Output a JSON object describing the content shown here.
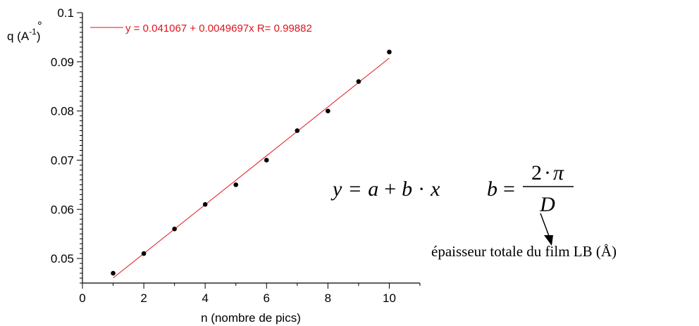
{
  "chart_data": {
    "type": "scatter",
    "xlabel": "n (nombre de pics)",
    "ylabel": {
      "base": "q (A",
      "accent": "°",
      "exp": "-1",
      "close": ")"
    },
    "xlim": [
      0,
      11
    ],
    "ylim": [
      0.045,
      0.1
    ],
    "x_ticks": [
      0,
      2,
      4,
      6,
      8,
      10
    ],
    "y_ticks": [
      0.05,
      0.06,
      0.07,
      0.08,
      0.09,
      0.1
    ],
    "y_tick_labels": [
      "0.05",
      "0.06",
      "0.07",
      "0.08",
      "0.09",
      "0.1"
    ],
    "grid": false,
    "series": [
      {
        "x": [
          1,
          2,
          3,
          4,
          5,
          6,
          7,
          8,
          9,
          10
        ],
        "y": [
          0.047,
          0.051,
          0.056,
          0.061,
          0.065,
          0.07,
          0.076,
          0.08,
          0.086,
          0.092
        ]
      }
    ],
    "fit": {
      "intercept": 0.041067,
      "slope": 0.0049697,
      "x_range": [
        1,
        10
      ],
      "color": "#e0141b",
      "legend": "y = 0.041067 + 0.0049697x   R= 0.99882",
      "legend_position": "top-left"
    }
  },
  "annotations": {
    "eq_y": "y",
    "eq_equals": "=",
    "eq_a": "a",
    "eq_plus": "+",
    "eq_b": "b",
    "eq_dot": "·",
    "eq_x": "x",
    "b_label": "b",
    "b_equals": "=",
    "numerator_two": "2",
    "numerator_dot": "·",
    "numerator_pi": "π",
    "denominator": "D",
    "note": "épaisseur totale du film LB (Å)"
  }
}
